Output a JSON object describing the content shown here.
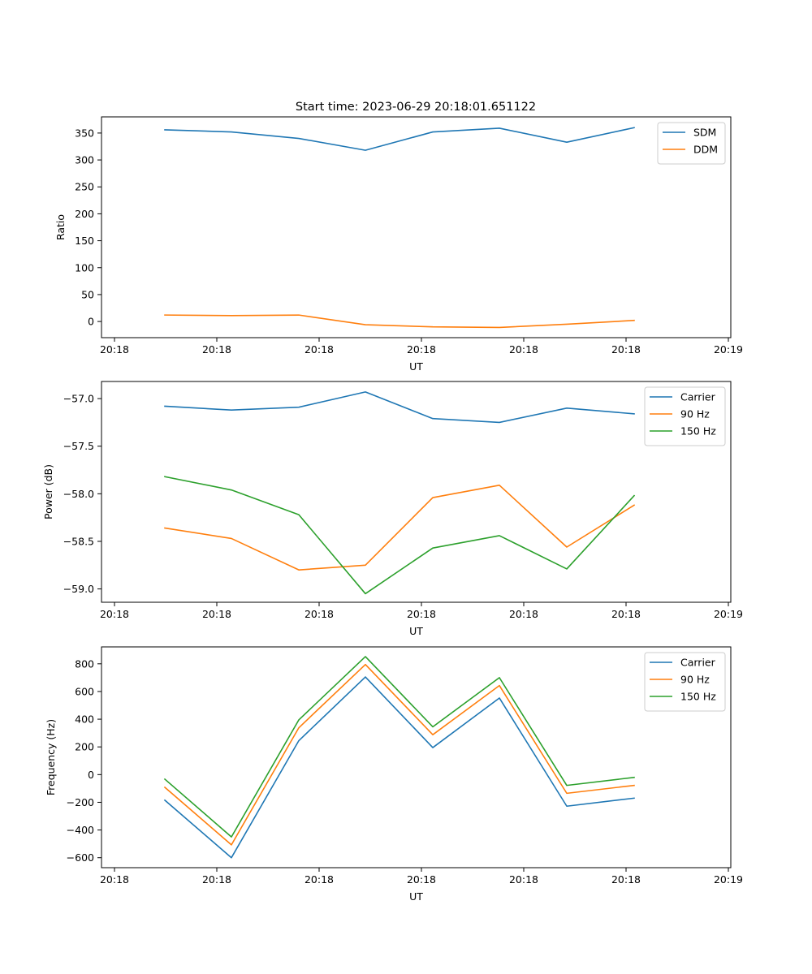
{
  "figure": {
    "title": "Start time: 2023-06-29 20:18:01.651122"
  },
  "colors": {
    "blue": "#1f77b4",
    "orange": "#ff7f0e",
    "green": "#2ca02c"
  },
  "chart_data": [
    {
      "type": "line",
      "xlabel": "UT",
      "ylabel": "Ratio",
      "xticklabels": [
        "20:18",
        "20:18",
        "20:18",
        "20:18",
        "20:18",
        "20:18",
        "20:19"
      ],
      "yticks": [
        0,
        50,
        100,
        150,
        200,
        250,
        300,
        350
      ],
      "ylim": [
        -30,
        380
      ],
      "legend": "top-right",
      "series": [
        {
          "name": "SDM",
          "color": "#1f77b4",
          "values": [
            356,
            352,
            340,
            318,
            352,
            359,
            333,
            360
          ]
        },
        {
          "name": "DDM",
          "color": "#ff7f0e",
          "values": [
            12,
            11,
            12,
            -6,
            -10,
            -11,
            -5,
            2
          ]
        }
      ]
    },
    {
      "type": "line",
      "xlabel": "UT",
      "ylabel": "Power (dB)",
      "xticklabels": [
        "20:18",
        "20:18",
        "20:18",
        "20:18",
        "20:18",
        "20:18",
        "20:19"
      ],
      "yticks": [
        -57.0,
        -57.5,
        -58.0,
        -58.5,
        -59.0
      ],
      "yticklabels": [
        "−57.0",
        "−57.5",
        "−58.0",
        "−58.5",
        "−59.0"
      ],
      "ylim": [
        -59.14,
        -56.82
      ],
      "legend": "top-right",
      "series": [
        {
          "name": "Carrier",
          "color": "#1f77b4",
          "values": [
            -57.08,
            -57.12,
            -57.09,
            -56.93,
            -57.21,
            -57.25,
            -57.1,
            -57.16
          ]
        },
        {
          "name": "90 Hz",
          "color": "#ff7f0e",
          "values": [
            -58.36,
            -58.47,
            -58.8,
            -58.75,
            -58.04,
            -57.91,
            -58.56,
            -58.12
          ]
        },
        {
          "name": "150 Hz",
          "color": "#2ca02c",
          "values": [
            -57.82,
            -57.96,
            -58.22,
            -59.05,
            -58.57,
            -58.44,
            -58.79,
            -58.02
          ]
        }
      ]
    },
    {
      "type": "line",
      "xlabel": "UT",
      "ylabel": "Frequency (Hz)",
      "xticklabels": [
        "20:18",
        "20:18",
        "20:18",
        "20:18",
        "20:18",
        "20:18",
        "20:19"
      ],
      "yticks": [
        -600,
        -400,
        -200,
        0,
        200,
        400,
        600,
        800
      ],
      "yticklabels": [
        "−600",
        "−400",
        "−200",
        "0",
        "200",
        "400",
        "600",
        "800"
      ],
      "ylim": [
        -672,
        922
      ],
      "legend": "top-right",
      "series": [
        {
          "name": "Carrier",
          "color": "#1f77b4",
          "values": [
            -185,
            -600,
            245,
            705,
            195,
            553,
            -228,
            -170
          ]
        },
        {
          "name": "90 Hz",
          "color": "#ff7f0e",
          "values": [
            -92,
            -507,
            338,
            795,
            288,
            643,
            -135,
            -78
          ]
        },
        {
          "name": "150 Hz",
          "color": "#2ca02c",
          "values": [
            -33,
            -450,
            395,
            852,
            345,
            700,
            -78,
            -20
          ]
        }
      ]
    }
  ]
}
